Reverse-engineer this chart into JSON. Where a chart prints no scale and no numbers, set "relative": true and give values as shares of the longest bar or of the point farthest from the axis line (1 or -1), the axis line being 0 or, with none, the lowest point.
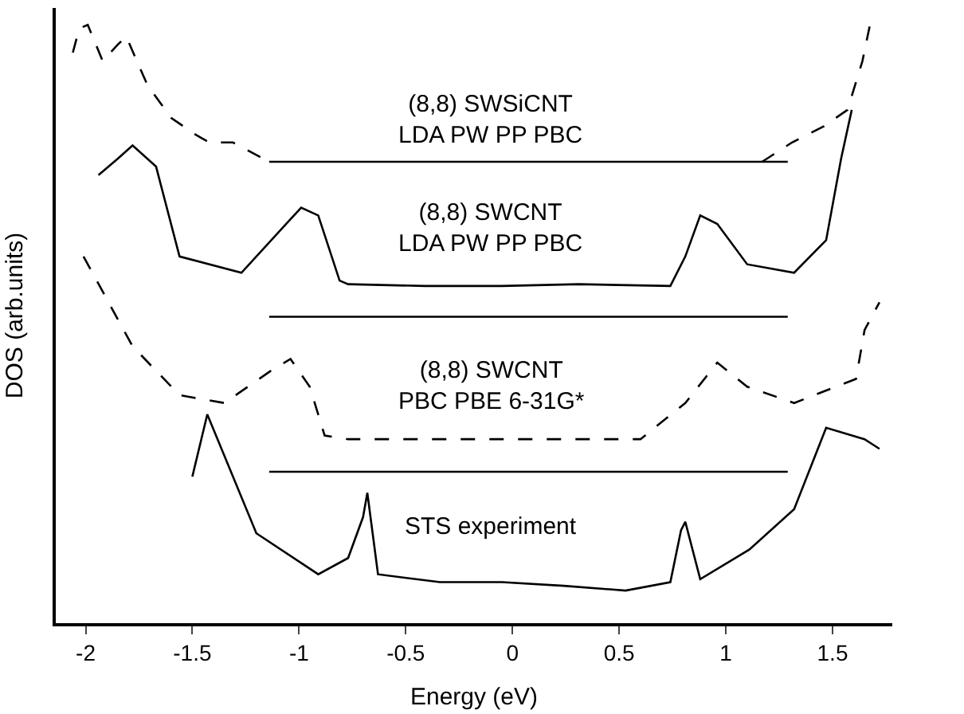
{
  "chart_data": {
    "type": "line",
    "relative": true,
    "xlabel": "Energy (eV)",
    "ylabel": "DOS (arb.units)",
    "xlim": [
      -2.14,
      1.78
    ],
    "xticks": [
      -2,
      -1.5,
      -1,
      -0.5,
      0,
      0.5,
      1,
      1.5
    ],
    "tick_labels": "x",
    "marker": "none",
    "series": [
      {
        "color": "#000000",
        "line_style": "solid",
        "x": [
          -1.5,
          -1.43,
          -1.2,
          -0.91,
          -0.77,
          -0.7,
          -0.68,
          -0.63,
          -0.34,
          -0.05,
          0.24,
          0.53,
          0.74,
          0.79,
          0.81,
          0.88,
          1.11,
          1.32,
          1.47,
          1.65,
          1.72
        ],
        "values": [
          0.243,
          0.346,
          0.149,
          0.081,
          0.108,
          0.176,
          0.216,
          0.081,
          0.068,
          0.068,
          0.062,
          0.054,
          0.068,
          0.154,
          0.168,
          0.073,
          0.122,
          0.189,
          0.324,
          0.305,
          0.289
        ]
      },
      {
        "color": "#000000",
        "line_style": "dashed",
        "x": [
          -2.01,
          -1.78,
          -1.56,
          -1.35,
          -1.13,
          -1.04,
          -0.95,
          -0.88,
          -0.77,
          -0.34,
          0.09,
          0.6,
          0.81,
          0.96,
          1.1,
          1.32,
          1.61,
          1.65,
          1.72
        ],
        "values": [
          0.608,
          0.459,
          0.378,
          0.365,
          0.419,
          0.438,
          0.392,
          0.311,
          0.305,
          0.305,
          0.305,
          0.305,
          0.365,
          0.432,
          0.392,
          0.365,
          0.405,
          0.486,
          0.532
        ]
      },
      {
        "color": "#000000",
        "line_style": "solid",
        "x": [
          -1.94,
          -1.85,
          -1.78,
          -1.67,
          -1.56,
          -1.27,
          -1.06,
          -0.99,
          -0.91,
          -0.81,
          -0.77,
          -0.41,
          -0.05,
          0.31,
          0.74,
          0.81,
          0.88,
          0.96,
          1.1,
          1.32,
          1.47,
          1.54,
          1.59
        ],
        "values": [
          0.743,
          0.77,
          0.792,
          0.757,
          0.608,
          0.581,
          0.662,
          0.689,
          0.676,
          0.568,
          0.562,
          0.559,
          0.559,
          0.562,
          0.559,
          0.608,
          0.676,
          0.662,
          0.595,
          0.581,
          0.635,
          0.77,
          0.851
        ]
      },
      {
        "color": "#000000",
        "line_style": "dashed",
        "x": [
          -2.06,
          -2.03,
          -1.99,
          -1.92,
          -1.85,
          -1.81,
          -1.76,
          -1.71,
          -1.6,
          -1.49,
          -1.42,
          -1.31,
          -1.14
        ],
        "values": [
          0.946,
          0.986,
          0.992,
          0.932,
          0.959,
          0.973,
          0.932,
          0.892,
          0.838,
          0.811,
          0.797,
          0.797,
          0.765
        ]
      },
      {
        "color": "#000000",
        "line_style": "dashed",
        "x": [
          1.17,
          1.31,
          1.46,
          1.57,
          1.64,
          1.68
        ],
        "values": [
          0.765,
          0.797,
          0.824,
          0.851,
          0.932,
          1.0
        ]
      },
      {
        "color": "#000000",
        "line_style": "solid",
        "x": [
          -1.14,
          1.29
        ],
        "values": [
          0.765,
          0.765
        ]
      },
      {
        "color": "#000000",
        "line_style": "solid",
        "x": [
          -1.14,
          1.29
        ],
        "values": [
          0.508,
          0.508
        ]
      },
      {
        "color": "#000000",
        "line_style": "solid",
        "x": [
          -1.14,
          1.29
        ],
        "values": [
          0.251,
          0.251
        ]
      }
    ],
    "annotations": [
      "(8,8) SWSiCNT\nLDA PW PP PBC",
      "(8,8) SWCNT\nLDA PW PP PBC",
      "(8,8) SWCNT\nPBC PBE 6-31G*",
      "STS experiment"
    ]
  }
}
